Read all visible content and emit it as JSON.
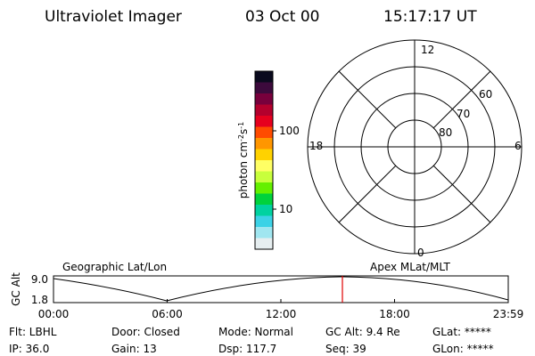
{
  "header": {
    "instrument": "Ultraviolet Imager",
    "date": "03 Oct 00",
    "time": "15:17:17 UT"
  },
  "colorbar": {
    "colors": [
      "#0a0a1e",
      "#3c0a3c",
      "#78003c",
      "#b4002d",
      "#e6001e",
      "#ff4b00",
      "#ff9600",
      "#ffd200",
      "#ffff64",
      "#c8ff3c",
      "#64f000",
      "#00d23c",
      "#00d2a0",
      "#3cd2e6",
      "#a0e6f0",
      "#e6eef0"
    ],
    "label": [
      "photon cm",
      "-2",
      "s",
      "-1"
    ],
    "tick_high": "100",
    "tick_low": "10"
  },
  "polar": {
    "mlt_top": "12",
    "mlt_right": "6",
    "mlt_left": "18",
    "mlt_bottom": "0",
    "lat_60": "60",
    "lat_70": "70",
    "lat_80": "80"
  },
  "orbit": {
    "axis_label": "GC Alt",
    "ytick_high": "9.0",
    "ytick_low": "1.8",
    "left_title": "Geographic Lat/Lon",
    "right_title": "Apex MLat/MLT",
    "xticks": [
      "00:00",
      "06:00",
      "12:00",
      "18:00",
      "23:59"
    ]
  },
  "info": [
    [
      "Flt: LBHL",
      "Door: Closed",
      "Mode: Normal",
      "GC Alt: 9.4 Re",
      "GLat: *****"
    ],
    [
      "IP: 36.0",
      "Gain: 13",
      "Dsp: 117.7",
      "Seq: 39",
      "GLon: *****"
    ]
  ]
}
